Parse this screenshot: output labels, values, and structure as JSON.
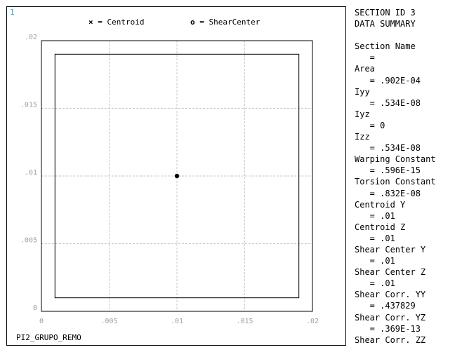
{
  "window_number": "1",
  "legend": {
    "centroid_symbol": "×",
    "centroid_label": "= Centroid",
    "shear_center_symbol": "o",
    "shear_center_label": "= ShearCenter"
  },
  "plot": {
    "x_ticks": [
      0,
      0.005,
      0.01,
      0.015,
      0.02
    ],
    "y_ticks": [
      0,
      0.005,
      0.01,
      0.015,
      0.02
    ],
    "x_tick_labels": [
      "0",
      ".005",
      ".01",
      ".015",
      ".02"
    ],
    "y_tick_labels": [
      "0",
      ".005",
      ".01",
      ".015",
      ".02"
    ],
    "outer_box": [
      0,
      0,
      0.02,
      0.02
    ],
    "inner_box": [
      0.001,
      0.001,
      0.019,
      0.019
    ],
    "centroid": [
      0.01,
      0.01
    ],
    "colors": {
      "grid": "#c8c8c8",
      "tick_labels": "#a0a0a0",
      "window_number": "#3aa7e0"
    }
  },
  "footer_label": "PI2_GRUPO_REMO",
  "summary": {
    "lines": [
      "SECTION ID 3",
      "DATA SUMMARY",
      "",
      "Section Name",
      "   =",
      "Area",
      "   = .902E-04",
      "Iyy",
      "   = .534E-08",
      "Iyz",
      "   = 0",
      "Izz",
      "   = .534E-08",
      "Warping Constant",
      "   = .596E-15",
      "Torsion Constant",
      "   = .832E-08",
      "Centroid Y",
      "   = .01",
      "Centroid Z",
      "   = .01",
      "Shear Center Y",
      "   = .01",
      "Shear Center Z",
      "   = .01",
      "Shear Corr. YY",
      "   = .437829",
      "Shear Corr. YZ",
      "   = .369E-13",
      "Shear Corr. ZZ"
    ]
  }
}
